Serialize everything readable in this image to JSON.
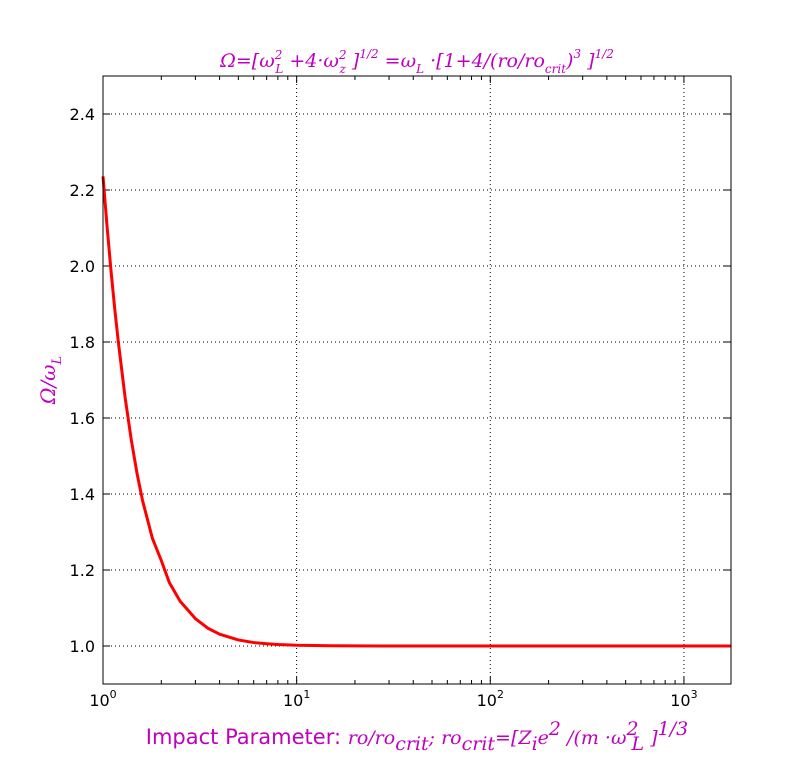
{
  "chart_data": {
    "type": "line",
    "title": "Ω=[ω_L^2 +4·ω_z^2 ]^{1/2} =ω_L ·[1+4/(ro/ro_crit)^3 ]^{1/2}",
    "xlabel": "Impact Parameter: ro/ro_crit; ro_crit=[Z_i e^2 /(m ·ω_L^2 ]^{1/3}",
    "ylabel": "Ω/ω_L",
    "xscale": "log",
    "xlim": [
      1,
      1750
    ],
    "ylim": [
      0.9,
      2.5
    ],
    "grid": true,
    "xticks": [
      {
        "value": 1,
        "base": "10",
        "exp": "0"
      },
      {
        "value": 10,
        "base": "10",
        "exp": "1"
      },
      {
        "value": 100,
        "base": "10",
        "exp": "2"
      },
      {
        "value": 1000,
        "base": "10",
        "exp": "3"
      }
    ],
    "yticks": [
      {
        "value": 1.0,
        "label": "1.0"
      },
      {
        "value": 1.2,
        "label": "1.2"
      },
      {
        "value": 1.4,
        "label": "1.4"
      },
      {
        "value": 1.6,
        "label": "1.6"
      },
      {
        "value": 1.8,
        "label": "1.8"
      },
      {
        "value": 2.0,
        "label": "2.0"
      },
      {
        "value": 2.2,
        "label": "2.2"
      },
      {
        "value": 2.4,
        "label": "2.4"
      }
    ],
    "series": [
      {
        "color": "#ff0000",
        "x": [
          1,
          1.05,
          1.1,
          1.15,
          1.2,
          1.3,
          1.4,
          1.5,
          1.6,
          1.8,
          2.0,
          2.2,
          2.5,
          3.0,
          3.5,
          4.0,
          5.0,
          6.0,
          7.0,
          8.0,
          10,
          15,
          20,
          50,
          100,
          1000,
          1750
        ],
        "y": [
          2.236,
          2.103,
          1.987,
          1.887,
          1.8,
          1.655,
          1.542,
          1.453,
          1.383,
          1.283,
          1.225,
          1.167,
          1.118,
          1.072,
          1.046,
          1.031,
          1.016,
          1.009,
          1.006,
          1.004,
          1.002,
          1.0006,
          1.0002,
          1.0,
          1.0,
          1.0,
          1.0
        ]
      }
    ],
    "colors": {
      "title": "#bf00bf",
      "axis_labels": "#bf00bf",
      "line": "#ff0000",
      "axes": "#000000",
      "grid": "#000000"
    }
  }
}
